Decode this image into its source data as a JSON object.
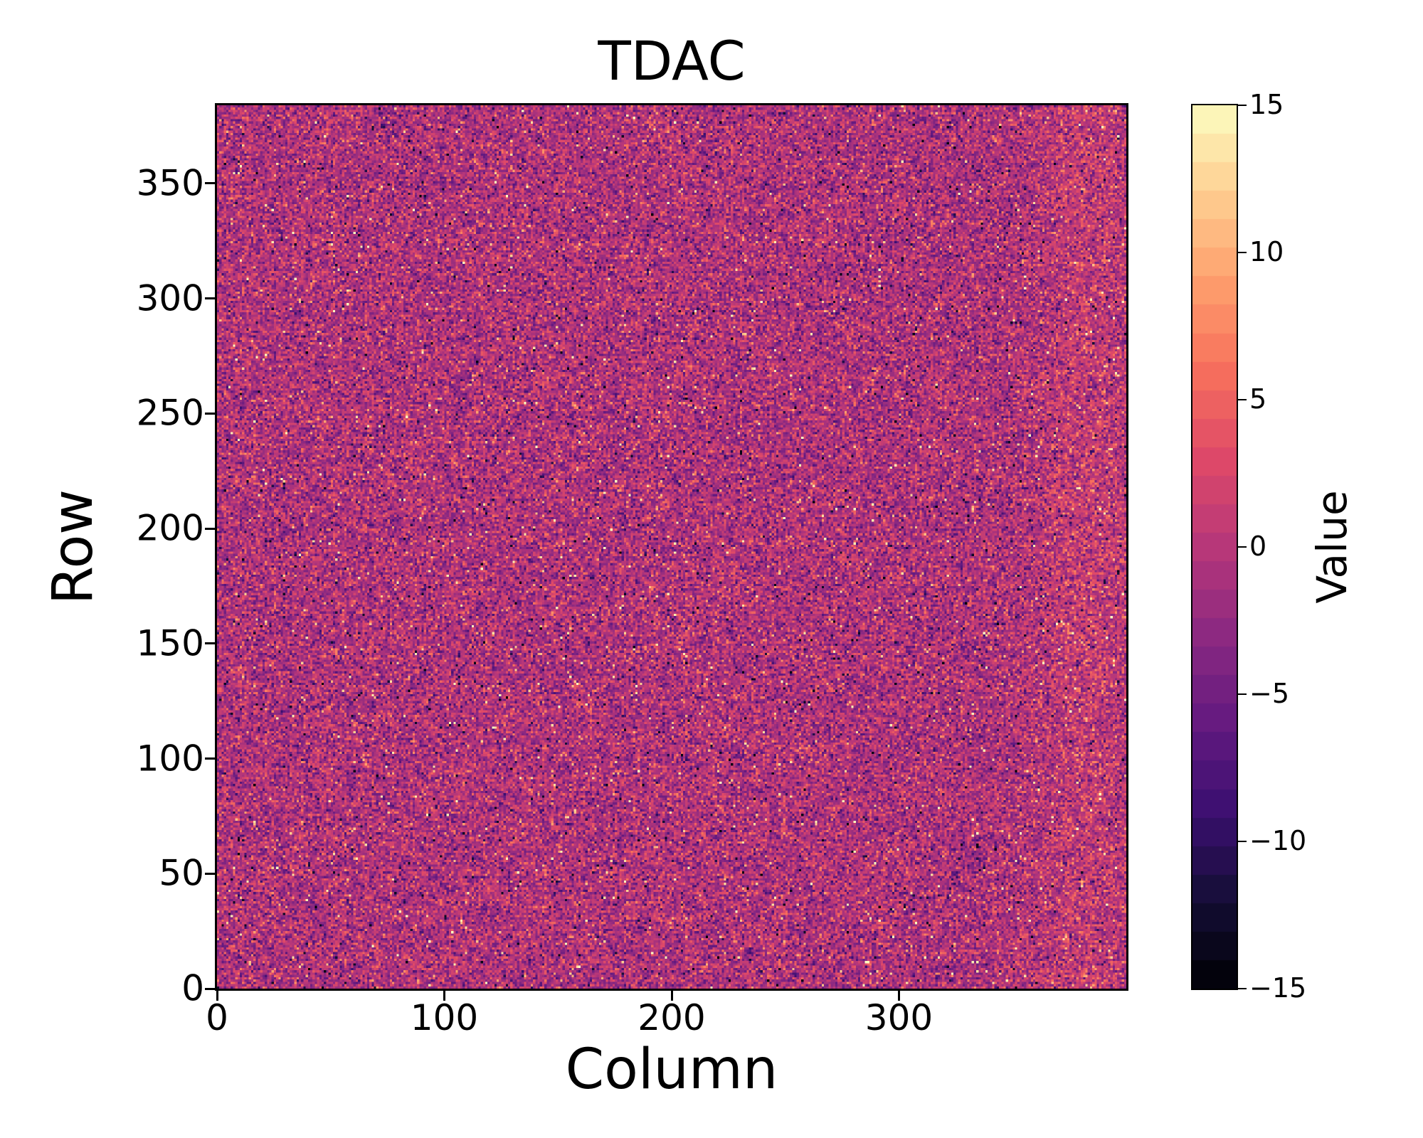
{
  "figure": {
    "background": "#ffffff"
  },
  "chart_data": {
    "type": "heatmap",
    "title": "TDAC",
    "xlabel": "Column",
    "ylabel": "Row",
    "colorbar_label": "Value",
    "x_range": [
      0,
      400
    ],
    "y_range": [
      0,
      384
    ],
    "x_ticks": [
      0,
      100,
      200,
      300
    ],
    "x_tick_labels": [
      "0",
      "100",
      "200",
      "300"
    ],
    "y_ticks": [
      0,
      50,
      100,
      150,
      200,
      250,
      300,
      350
    ],
    "y_tick_labels": [
      "0",
      "50",
      "100",
      "150",
      "200",
      "250",
      "300",
      "350"
    ],
    "value_range": [
      -15,
      15
    ],
    "colorbar_ticks": [
      15,
      10,
      5,
      0,
      -5,
      -10,
      -15
    ],
    "colorbar_tick_labels": [
      "15",
      "10",
      "5",
      "0",
      "−5",
      "−10",
      "−15"
    ],
    "colormap": "magma",
    "colormap_stops": [
      "#000004",
      "#140e36",
      "#3b0f70",
      "#641a80",
      "#8c2981",
      "#b73779",
      "#de4968",
      "#f7705c",
      "#fe9f6d",
      "#fece91",
      "#fcfdbf"
    ],
    "discrete_levels": 31,
    "grid": {
      "rows": 384,
      "cols": 400
    },
    "distribution": {
      "kind": "gaussian_noise",
      "seed": 7,
      "mean": -0.7,
      "std": 3.2,
      "outlier_fraction": 0.04,
      "clip": [
        -15,
        15
      ],
      "quantized": true,
      "right_edge_boost": {
        "center_col": 382,
        "sigma": 13,
        "amplitude": 1.6
      }
    },
    "axis_color": "#000000",
    "text_color": "#000000",
    "legend": "none",
    "grid_lines": false
  }
}
